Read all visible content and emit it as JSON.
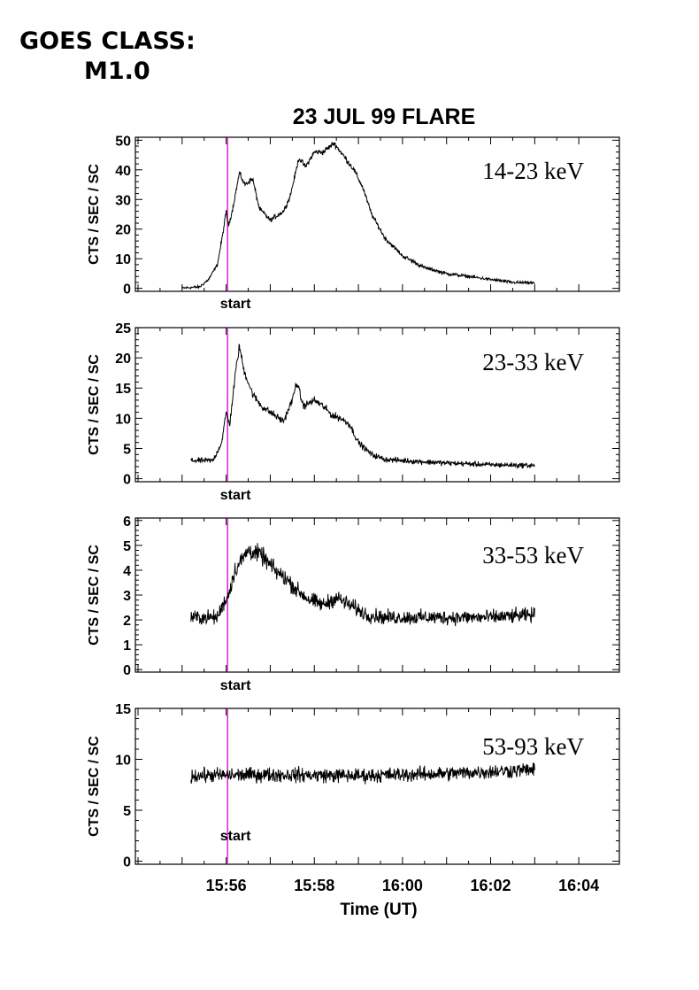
{
  "header": {
    "goes_line1": "GOES CLASS:",
    "goes_line2": "M1.0"
  },
  "colors": {
    "start_line": "#cc00cc",
    "trace": "#000000",
    "axes": "#000000"
  },
  "chart_data": {
    "type": "line",
    "title": "23 JUL 99 FLARE",
    "xlabel": "Time (UT)",
    "x_units": "minutes after 15:54 UT",
    "xlim": [
      -0.06,
      10.92
    ],
    "x_tick_labels": [
      "15:56",
      "15:58",
      "16:00",
      "16:02",
      "16:04"
    ],
    "x_tick_values": [
      2,
      4,
      6,
      8,
      10
    ],
    "start_marker": {
      "x": 2.03,
      "label": "start"
    },
    "grid": false,
    "panels": [
      {
        "band": "14-23 keV",
        "ylabel": "CTS / SEC / SC",
        "ylim": [
          -1,
          51
        ],
        "yticks": [
          0,
          10,
          20,
          30,
          40,
          50
        ],
        "noise": 0.8,
        "series": [
          [
            1.0,
            0.1
          ],
          [
            1.4,
            0.5
          ],
          [
            1.6,
            3
          ],
          [
            1.8,
            8
          ],
          [
            1.92,
            18
          ],
          [
            2.0,
            26
          ],
          [
            2.05,
            21
          ],
          [
            2.15,
            27
          ],
          [
            2.3,
            39
          ],
          [
            2.42,
            35
          ],
          [
            2.6,
            37
          ],
          [
            2.75,
            27
          ],
          [
            3.0,
            23
          ],
          [
            3.3,
            26
          ],
          [
            3.45,
            31
          ],
          [
            3.65,
            44
          ],
          [
            3.8,
            41
          ],
          [
            4.0,
            46
          ],
          [
            4.2,
            46
          ],
          [
            4.45,
            49
          ],
          [
            4.65,
            45
          ],
          [
            4.9,
            40
          ],
          [
            5.1,
            34
          ],
          [
            5.3,
            25
          ],
          [
            5.6,
            17
          ],
          [
            6.0,
            11
          ],
          [
            6.5,
            7
          ],
          [
            7.0,
            5
          ],
          [
            7.5,
            4
          ],
          [
            8.0,
            3
          ],
          [
            8.5,
            2
          ],
          [
            9.0,
            1.8
          ]
        ]
      },
      {
        "band": "23-33 keV",
        "ylabel": "CTS / SEC / SC",
        "ylim": [
          -0.5,
          25
        ],
        "yticks": [
          0,
          5,
          10,
          15,
          20,
          25
        ],
        "noise": 0.6,
        "series": [
          [
            1.2,
            3
          ],
          [
            1.7,
            3
          ],
          [
            1.9,
            6
          ],
          [
            2.0,
            11
          ],
          [
            2.08,
            9
          ],
          [
            2.22,
            18
          ],
          [
            2.3,
            22
          ],
          [
            2.4,
            18
          ],
          [
            2.6,
            14
          ],
          [
            2.8,
            12
          ],
          [
            3.0,
            11
          ],
          [
            3.3,
            9.5
          ],
          [
            3.5,
            13
          ],
          [
            3.6,
            16
          ],
          [
            3.75,
            12
          ],
          [
            4.0,
            13
          ],
          [
            4.2,
            12
          ],
          [
            4.4,
            10.5
          ],
          [
            4.6,
            10
          ],
          [
            4.8,
            9
          ],
          [
            5.0,
            6
          ],
          [
            5.3,
            4
          ],
          [
            5.6,
            3.2
          ],
          [
            6.0,
            3
          ],
          [
            7.0,
            2.6
          ],
          [
            8.0,
            2.3
          ],
          [
            9.0,
            2.2
          ]
        ]
      },
      {
        "band": "33-53 keV",
        "ylabel": "CTS / SEC / SC",
        "ylim": [
          -0.1,
          6.1
        ],
        "yticks": [
          0,
          1,
          2,
          3,
          4,
          5,
          6
        ],
        "noise": 0.3,
        "series": [
          [
            1.2,
            2.1
          ],
          [
            1.8,
            2.1
          ],
          [
            1.95,
            2.7
          ],
          [
            2.05,
            3.0
          ],
          [
            2.2,
            4.0
          ],
          [
            2.5,
            4.8
          ],
          [
            2.8,
            4.6
          ],
          [
            3.1,
            4.0
          ],
          [
            3.4,
            3.6
          ],
          [
            3.6,
            3.2
          ],
          [
            3.9,
            2.8
          ],
          [
            4.2,
            2.6
          ],
          [
            4.5,
            2.9
          ],
          [
            4.8,
            2.6
          ],
          [
            5.2,
            2.2
          ],
          [
            5.6,
            2.1
          ],
          [
            6.5,
            2.1
          ],
          [
            8.0,
            2.1
          ],
          [
            9.0,
            2.2
          ]
        ]
      },
      {
        "band": "53-93 keV",
        "ylabel": "CTS / SEC / SC",
        "ylim": [
          -0.3,
          15
        ],
        "yticks": [
          0,
          5,
          10,
          15
        ],
        "noise": 0.6,
        "series": [
          [
            1.2,
            8.4
          ],
          [
            3.0,
            8.5
          ],
          [
            5.0,
            8.4
          ],
          [
            7.0,
            8.6
          ],
          [
            8.0,
            8.8
          ],
          [
            9.0,
            9.0
          ]
        ]
      }
    ]
  }
}
